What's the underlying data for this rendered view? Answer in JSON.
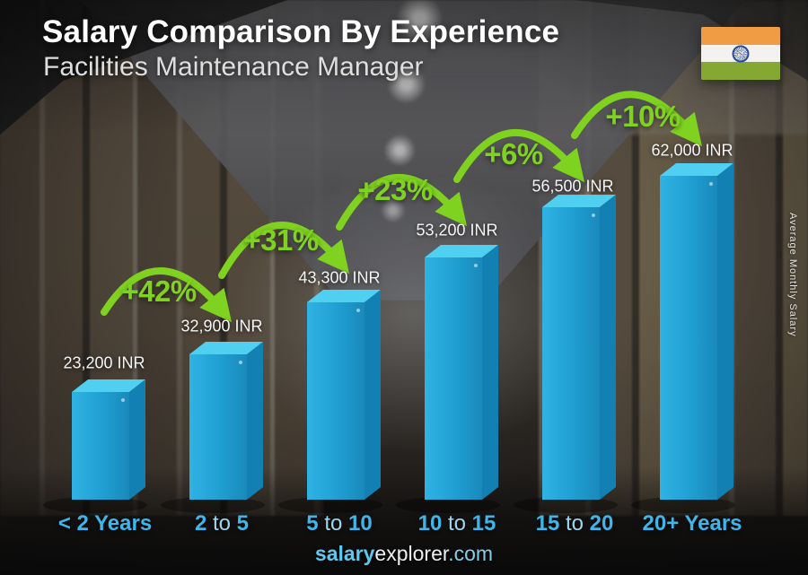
{
  "header": {
    "title": "Salary Comparison By Experience",
    "subtitle": "Facilities Maintenance Manager"
  },
  "flag": {
    "country": "India",
    "saffron": "#f09c44",
    "white": "#f4f2ee",
    "green": "#84a832",
    "chakra_blue": "#2a4b9b"
  },
  "y_axis": {
    "label": "Average Monthly Salary"
  },
  "footer": {
    "brand_bold": "salary",
    "brand_regular": "explorer",
    "brand_suffix": ".com"
  },
  "chart_data": {
    "type": "bar",
    "title": "Salary Comparison By Experience",
    "subtitle": "Facilities Maintenance Manager",
    "currency": "INR",
    "categories": [
      "< 2 Years",
      "2 to 5",
      "5 to 10",
      "10 to 15",
      "15 to 20",
      "20+ Years"
    ],
    "values": [
      23200,
      32900,
      43300,
      53200,
      56500,
      62000
    ],
    "value_labels": [
      "23,200 INR",
      "32,900 INR",
      "43,300 INR",
      "53,200 INR",
      "56,500 INR",
      "62,000 INR"
    ],
    "pct_increases": [
      "+42%",
      "+31%",
      "+23%",
      "+6%",
      "+10%"
    ],
    "ylabel": "Average Monthly Salary",
    "x_segments": [
      {
        "pre": "< 2 Years",
        "to": "",
        "post": ""
      },
      {
        "pre": "2",
        "to": " to ",
        "post": "5"
      },
      {
        "pre": "5",
        "to": " to ",
        "post": "10"
      },
      {
        "pre": "10",
        "to": " to ",
        "post": "15"
      },
      {
        "pre": "15",
        "to": " to ",
        "post": "20"
      },
      {
        "pre": "20+ Years",
        "to": "",
        "post": ""
      }
    ],
    "colors": {
      "bar_front": "#1f9ed2",
      "bar_front_light": "#2fb3e3",
      "bar_front_dark": "#1a89ba",
      "bar_top": "#4fd0f0",
      "bar_side": "#1280b2",
      "accent_green": "#7fd320",
      "label_blue": "#3fb6ea"
    },
    "layout_hints": {
      "legend": "none",
      "grid": "off",
      "value_labels_above_bars": true
    }
  }
}
